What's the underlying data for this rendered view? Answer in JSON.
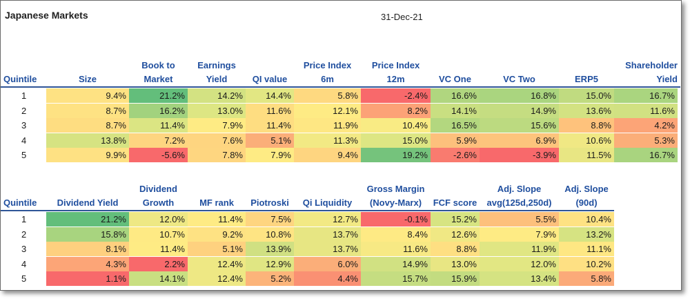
{
  "title": "Japanese Markets",
  "date": "31-Dec-21",
  "table1": {
    "headers": [
      "Quintile",
      "Size",
      "Book to\nMarket",
      "Earnings\nYield",
      "QI value",
      "Price Index\n6m",
      "Price Index\n12m",
      "VC One",
      "VC Two",
      "ERP5",
      "Shareholder\nYield"
    ],
    "rows": [
      {
        "q": "1",
        "values": [
          "9.4%",
          "21.2%",
          "14.2%",
          "14.4%",
          "5.8%",
          "-2.4%",
          "16.6%",
          "16.8%",
          "15.0%",
          "16.7%"
        ]
      },
      {
        "q": "2",
        "values": [
          "8.7%",
          "16.2%",
          "13.0%",
          "11.6%",
          "12.1%",
          "8.2%",
          "14.1%",
          "14.9%",
          "13.6%",
          "11.6%"
        ]
      },
      {
        "q": "3",
        "values": [
          "8.7%",
          "11.4%",
          "7.9%",
          "11.4%",
          "11.9%",
          "10.4%",
          "16.5%",
          "15.6%",
          "8.8%",
          "4.2%"
        ]
      },
      {
        "q": "4",
        "values": [
          "13.8%",
          "7.2%",
          "7.6%",
          "5.1%",
          "11.3%",
          "15.0%",
          "5.9%",
          "6.9%",
          "10.6%",
          "5.3%"
        ]
      },
      {
        "q": "5",
        "values": [
          "9.9%",
          "-5.6%",
          "7.8%",
          "7.9%",
          "9.4%",
          "19.2%",
          "-2.6%",
          "-3.9%",
          "11.5%",
          "16.7%"
        ]
      }
    ],
    "colors": [
      [
        "#fee283",
        "#63be7b",
        "#d3e282",
        "#e2e783",
        "#fed980",
        "#f8696b",
        "#b0d67f",
        "#aad57f",
        "#c0db80",
        "#aad57f"
      ],
      [
        "#fee283",
        "#a2d27e",
        "#dde683",
        "#fedd81",
        "#feeb84",
        "#fca277",
        "#c9df81",
        "#c5dd81",
        "#d3e282",
        "#d1e182"
      ],
      [
        "#fedd81",
        "#dbe583",
        "#feeb84",
        "#fedd81",
        "#fee783",
        "#f9eb84",
        "#b3d77f",
        "#bcda80",
        "#fec27c",
        "#fca477"
      ],
      [
        "#d6e382",
        "#fed580",
        "#fed580",
        "#fbae79",
        "#f2e984",
        "#dde683",
        "#fdc07c",
        "#fdc47c",
        "#f0e884",
        "#fbae79"
      ],
      [
        "#fee183",
        "#f8696b",
        "#fed680",
        "#feeb84",
        "#fed580",
        "#75c37c",
        "#f97b6f",
        "#f8696b",
        "#e8e683",
        "#a9d47f"
      ]
    ]
  },
  "table2": {
    "headers": [
      "Quintile",
      "Dividend Yield",
      "Dividend\nGrowth",
      "MF rank",
      "Piotroski",
      "Qi Liquidity",
      "Gross Margin\n(Novy-Marx)",
      "FCF score",
      "Adj. Slope\navg(125d,250d)",
      "Adj. Slope\n(90d)"
    ],
    "rows": [
      {
        "q": "1",
        "values": [
          "21.2%",
          "12.0%",
          "11.4%",
          "7.5%",
          "12.7%",
          "-0.1%",
          "15.2%",
          "5.5%",
          "10.4%"
        ]
      },
      {
        "q": "2",
        "values": [
          "15.8%",
          "10.7%",
          "9.2%",
          "10.8%",
          "13.7%",
          "8.4%",
          "12.6%",
          "7.9%",
          "13.2%"
        ]
      },
      {
        "q": "3",
        "values": [
          "8.1%",
          "11.4%",
          "5.1%",
          "13.9%",
          "13.7%",
          "11.6%",
          "8.8%",
          "11.9%",
          "11.1%"
        ]
      },
      {
        "q": "4",
        "values": [
          "4.3%",
          "2.2%",
          "12.4%",
          "12.9%",
          "6.0%",
          "14.9%",
          "13.0%",
          "12.0%",
          "10.2%"
        ]
      },
      {
        "q": "5",
        "values": [
          "1.1%",
          "14.1%",
          "12.4%",
          "5.2%",
          "4.4%",
          "15.7%",
          "15.9%",
          "13.4%",
          "5.8%"
        ]
      }
    ],
    "colors": [
      [
        "#63be7b",
        "#eee884",
        "#feeb84",
        "#fed580",
        "#f2e984",
        "#f8696b",
        "#d7e482",
        "#fdc07c",
        "#fee283"
      ],
      [
        "#a8d47f",
        "#feea84",
        "#fee283",
        "#fee483",
        "#e7e683",
        "#feea84",
        "#f0e884",
        "#feeb84",
        "#d6e382"
      ],
      [
        "#fed07f",
        "#feeb84",
        "#fed17f",
        "#d0e082",
        "#e7e683",
        "#f7e984",
        "#fedf82",
        "#e0e683",
        "#fee783"
      ],
      [
        "#fca577",
        "#f8696b",
        "#eee884",
        "#e0e683",
        "#fbae79",
        "#d1e182",
        "#e8e683",
        "#e2e783",
        "#fee083"
      ],
      [
        "#f8696b",
        "#c9df81",
        "#eee884",
        "#fcb47a",
        "#fa9073",
        "#c5dd81",
        "#c3dc80",
        "#d5e382",
        "#fbaa79"
      ]
    ]
  }
}
